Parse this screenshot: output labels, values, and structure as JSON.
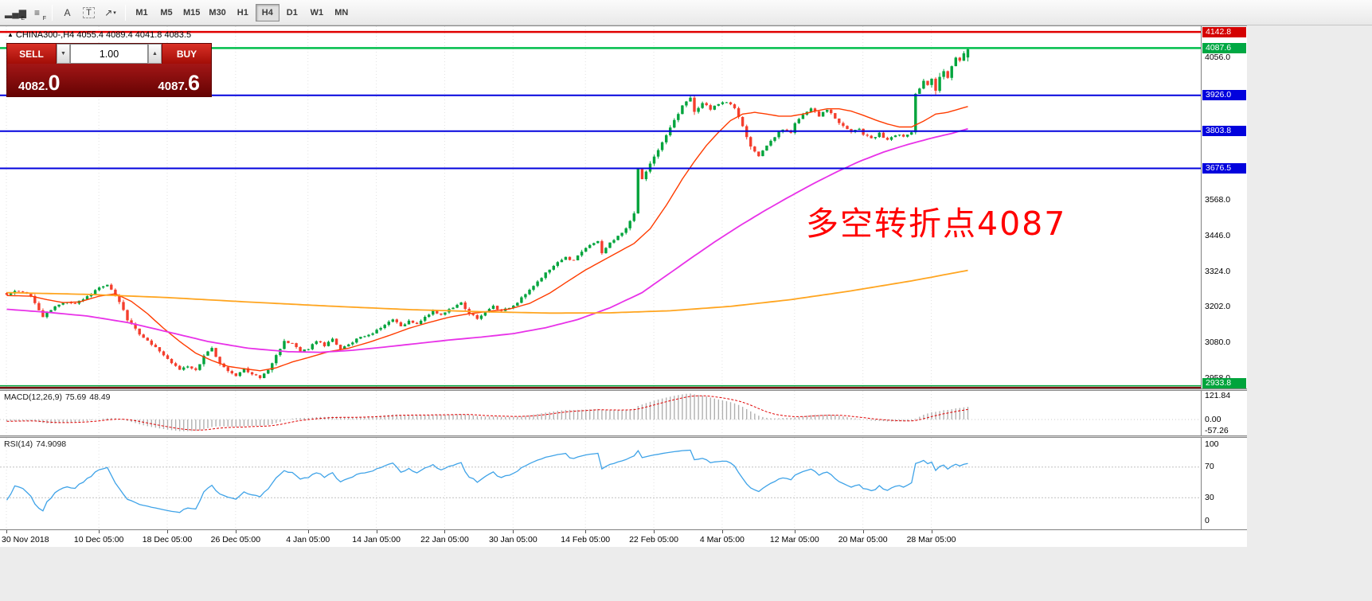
{
  "toolbar": {
    "tools": [
      {
        "name": "indicators-icon",
        "glyph": "▂▄▆",
        "sub": "E"
      },
      {
        "name": "objects-list-icon",
        "glyph": "≡",
        "sub": "F"
      },
      {
        "type": "sep"
      },
      {
        "name": "text-tool-icon",
        "glyph": "A"
      },
      {
        "name": "text-label-tool-icon",
        "glyph": "T",
        "boxed": true
      },
      {
        "name": "arrows-tool-icon",
        "glyph": "↗",
        "caret": true
      },
      {
        "type": "sep"
      }
    ],
    "timeframes": [
      {
        "label": "M1"
      },
      {
        "label": "M5"
      },
      {
        "label": "M15"
      },
      {
        "label": "M30"
      },
      {
        "label": "H1"
      },
      {
        "label": "H4",
        "active": true
      },
      {
        "label": "D1"
      },
      {
        "label": "W1"
      },
      {
        "label": "MN"
      }
    ]
  },
  "icons": {
    "collapse": "▲",
    "dropdown_caret": "▼",
    "spinner_up": "▲"
  },
  "chart": {
    "symbol_period": "CHINA300-,H4",
    "ohlc": "4055.4 4089.4 4041.8 4083.5",
    "annotation": {
      "text": "多空转折点4087",
      "color": "#ff0000"
    }
  },
  "trade_panel": {
    "sell_label": "SELL",
    "buy_label": "BUY",
    "volume": "1.00",
    "sell_price": {
      "small": "4082.",
      "big": "0"
    },
    "buy_price": {
      "small": "4087.",
      "big": "6"
    }
  },
  "chart_data": {
    "type": "candlestick",
    "symbol": "CHINA300-",
    "timeframe": "H4",
    "current_bar": {
      "open": 4055.4,
      "high": 4089.4,
      "low": 4041.8,
      "close": 4083.5
    },
    "y_axis_labels": [
      {
        "price": 4056,
        "text": "4056.0"
      },
      {
        "price": 3568,
        "text": "3568.0"
      },
      {
        "price": 3446,
        "text": "3446.0"
      },
      {
        "price": 3324,
        "text": "3324.0"
      },
      {
        "price": 3202,
        "text": "3202.0"
      },
      {
        "price": 3080,
        "text": "3080.0"
      },
      {
        "price": 2958,
        "text": "2958.0"
      }
    ],
    "hlines": [
      {
        "price": 4142.8,
        "color": "#E00000",
        "width": 2.5,
        "label": "4142.8",
        "label_bg": "#D40000"
      },
      {
        "price": 4087.6,
        "color": "#00BE4B",
        "width": 2.5,
        "label": "4087.6",
        "label_bg": "#00A843"
      },
      {
        "price": 3926.0,
        "color": "#0202DD",
        "width": 2,
        "label": "3926.0",
        "label_bg": "#0202DD"
      },
      {
        "price": 3803.8,
        "color": "#0202DD",
        "width": 2,
        "label": "3803.8",
        "label_bg": "#0202DD"
      },
      {
        "price": 3676.5,
        "color": "#0202DD",
        "width": 2,
        "label": "3676.5",
        "label_bg": "#0202DD"
      },
      {
        "price": 2933.8,
        "color": "#00A43C",
        "width": 1.5,
        "label": "2933.8",
        "label_bg": "#00A43C"
      },
      {
        "price": 2926.0,
        "color": "#7B1010",
        "width": 3,
        "label": null
      }
    ],
    "x_ticks": [
      {
        "bar": 0,
        "label": "30 Nov 2018"
      },
      {
        "bar": 23,
        "label": "10 Dec 05:00"
      },
      {
        "bar": 40,
        "label": "18 Dec 05:00"
      },
      {
        "bar": 57,
        "label": "26 Dec 05:00"
      },
      {
        "bar": 75,
        "label": "4 Jan 05:00"
      },
      {
        "bar": 92,
        "label": "14 Jan 05:00"
      },
      {
        "bar": 109,
        "label": "22 Jan 05:00"
      },
      {
        "bar": 126,
        "label": "30 Jan 05:00"
      },
      {
        "bar": 144,
        "label": "14 Feb 05:00"
      },
      {
        "bar": 161,
        "label": "22 Feb 05:00"
      },
      {
        "bar": 178,
        "label": "4 Mar 05:00"
      },
      {
        "bar": 196,
        "label": "12 Mar 05:00"
      },
      {
        "bar": 213,
        "label": "20 Mar 05:00"
      },
      {
        "bar": 230,
        "label": "28 Mar 05:00"
      }
    ],
    "price_anchors": [
      [
        -60,
        3320
      ],
      [
        -40,
        3300
      ],
      [
        -25,
        3280
      ],
      [
        -12,
        3262
      ],
      [
        -1,
        3248
      ],
      [
        0,
        3245
      ],
      [
        2,
        3260
      ],
      [
        4,
        3252
      ],
      [
        6,
        3240
      ],
      [
        8,
        3190
      ],
      [
        9,
        3172
      ],
      [
        11,
        3195
      ],
      [
        13,
        3210
      ],
      [
        15,
        3222
      ],
      [
        17,
        3215
      ],
      [
        19,
        3228
      ],
      [
        21,
        3248
      ],
      [
        23,
        3268
      ],
      [
        25,
        3280
      ],
      [
        28,
        3220
      ],
      [
        30,
        3160
      ],
      [
        33,
        3110
      ],
      [
        36,
        3075
      ],
      [
        40,
        3025
      ],
      [
        43,
        2988
      ],
      [
        45,
        3000
      ],
      [
        47,
        2985
      ],
      [
        49,
        3035
      ],
      [
        51,
        3060
      ],
      [
        53,
        3010
      ],
      [
        55,
        2985
      ],
      [
        57,
        2968
      ],
      [
        59,
        2990
      ],
      [
        61,
        2972
      ],
      [
        63,
        2960
      ],
      [
        65,
        2985
      ],
      [
        67,
        3040
      ],
      [
        69,
        3085
      ],
      [
        71,
        3080
      ],
      [
        73,
        3050
      ],
      [
        75,
        3062
      ],
      [
        77,
        3085
      ],
      [
        79,
        3072
      ],
      [
        81,
        3092
      ],
      [
        83,
        3060
      ],
      [
        85,
        3072
      ],
      [
        87,
        3095
      ],
      [
        89,
        3105
      ],
      [
        91,
        3115
      ],
      [
        94,
        3140
      ],
      [
        96,
        3160
      ],
      [
        98,
        3135
      ],
      [
        100,
        3155
      ],
      [
        102,
        3148
      ],
      [
        104,
        3170
      ],
      [
        106,
        3188
      ],
      [
        108,
        3178
      ],
      [
        111,
        3200
      ],
      [
        113,
        3215
      ],
      [
        115,
        3180
      ],
      [
        117,
        3165
      ],
      [
        119,
        3185
      ],
      [
        121,
        3205
      ],
      [
        123,
        3190
      ],
      [
        125,
        3200
      ],
      [
        127,
        3218
      ],
      [
        129,
        3248
      ],
      [
        131,
        3278
      ],
      [
        133,
        3305
      ],
      [
        135,
        3332
      ],
      [
        137,
        3358
      ],
      [
        139,
        3372
      ],
      [
        141,
        3362
      ],
      [
        143,
        3392
      ],
      [
        145,
        3412
      ],
      [
        147,
        3425
      ],
      [
        148,
        3390
      ],
      [
        150,
        3420
      ],
      [
        152,
        3445
      ],
      [
        154,
        3470
      ],
      [
        156,
        3520
      ],
      [
        157,
        3672
      ],
      [
        158,
        3640
      ],
      [
        160,
        3690
      ],
      [
        162,
        3740
      ],
      [
        164,
        3790
      ],
      [
        166,
        3840
      ],
      [
        168,
        3890
      ],
      [
        170,
        3920
      ],
      [
        171,
        3870
      ],
      [
        173,
        3900
      ],
      [
        175,
        3880
      ],
      [
        177,
        3898
      ],
      [
        179,
        3904
      ],
      [
        181,
        3885
      ],
      [
        183,
        3820
      ],
      [
        185,
        3750
      ],
      [
        187,
        3718
      ],
      [
        189,
        3755
      ],
      [
        191,
        3785
      ],
      [
        193,
        3812
      ],
      [
        195,
        3800
      ],
      [
        196,
        3830
      ],
      [
        198,
        3858
      ],
      [
        200,
        3880
      ],
      [
        202,
        3856
      ],
      [
        204,
        3876
      ],
      [
        206,
        3848
      ],
      [
        208,
        3820
      ],
      [
        210,
        3800
      ],
      [
        212,
        3812
      ],
      [
        213,
        3792
      ],
      [
        215,
        3778
      ],
      [
        217,
        3795
      ],
      [
        219,
        3772
      ],
      [
        221,
        3792
      ],
      [
        223,
        3786
      ],
      [
        225,
        3802
      ],
      [
        226,
        3928
      ],
      [
        227,
        3952
      ],
      [
        228,
        3978
      ],
      [
        229,
        3958
      ],
      [
        230,
        3986
      ],
      [
        231,
        3942
      ],
      [
        232,
        3988
      ],
      [
        233,
        4012
      ],
      [
        234,
        3986
      ],
      [
        235,
        4026
      ],
      [
        236,
        4056
      ],
      [
        237,
        4042
      ],
      [
        238,
        4070
      ],
      [
        239,
        4083.5
      ]
    ],
    "moving_averages": [
      {
        "name": "ma-fast",
        "color": "#FF3C00",
        "width": 1.4,
        "anchors": [
          [
            0,
            3242
          ],
          [
            6,
            3240
          ],
          [
            10,
            3228
          ],
          [
            14,
            3218
          ],
          [
            18,
            3220
          ],
          [
            23,
            3240
          ],
          [
            27,
            3248
          ],
          [
            31,
            3222
          ],
          [
            35,
            3180
          ],
          [
            39,
            3130
          ],
          [
            43,
            3085
          ],
          [
            47,
            3045
          ],
          [
            51,
            3020
          ],
          [
            55,
            3000
          ],
          [
            59,
            2992
          ],
          [
            63,
            2985
          ],
          [
            67,
            2995
          ],
          [
            71,
            3015
          ],
          [
            75,
            3030
          ],
          [
            80,
            3050
          ],
          [
            85,
            3062
          ],
          [
            90,
            3082
          ],
          [
            95,
            3105
          ],
          [
            100,
            3130
          ],
          [
            105,
            3150
          ],
          [
            110,
            3168
          ],
          [
            115,
            3180
          ],
          [
            120,
            3188
          ],
          [
            125,
            3196
          ],
          [
            130,
            3215
          ],
          [
            135,
            3250
          ],
          [
            140,
            3295
          ],
          [
            144,
            3330
          ],
          [
            148,
            3360
          ],
          [
            152,
            3390
          ],
          [
            156,
            3420
          ],
          [
            160,
            3470
          ],
          [
            164,
            3550
          ],
          [
            168,
            3640
          ],
          [
            171,
            3700
          ],
          [
            174,
            3755
          ],
          [
            177,
            3800
          ],
          [
            180,
            3840
          ],
          [
            183,
            3862
          ],
          [
            186,
            3868
          ],
          [
            189,
            3862
          ],
          [
            192,
            3855
          ],
          [
            195,
            3855
          ],
          [
            198,
            3862
          ],
          [
            201,
            3872
          ],
          [
            204,
            3880
          ],
          [
            207,
            3880
          ],
          [
            210,
            3872
          ],
          [
            213,
            3858
          ],
          [
            216,
            3842
          ],
          [
            219,
            3828
          ],
          [
            222,
            3818
          ],
          [
            225,
            3818
          ],
          [
            228,
            3838
          ],
          [
            231,
            3862
          ],
          [
            234,
            3868
          ],
          [
            237,
            3880
          ],
          [
            239,
            3888
          ]
        ]
      },
      {
        "name": "ma-mid",
        "color": "#E832E8",
        "width": 1.8,
        "anchors": [
          [
            0,
            3195
          ],
          [
            10,
            3185
          ],
          [
            20,
            3172
          ],
          [
            30,
            3150
          ],
          [
            40,
            3118
          ],
          [
            50,
            3085
          ],
          [
            60,
            3062
          ],
          [
            70,
            3050
          ],
          [
            78,
            3048
          ],
          [
            86,
            3055
          ],
          [
            94,
            3066
          ],
          [
            102,
            3078
          ],
          [
            110,
            3090
          ],
          [
            118,
            3100
          ],
          [
            126,
            3112
          ],
          [
            134,
            3132
          ],
          [
            142,
            3160
          ],
          [
            150,
            3200
          ],
          [
            158,
            3252
          ],
          [
            164,
            3310
          ],
          [
            170,
            3368
          ],
          [
            176,
            3425
          ],
          [
            182,
            3478
          ],
          [
            188,
            3528
          ],
          [
            194,
            3575
          ],
          [
            200,
            3620
          ],
          [
            206,
            3662
          ],
          [
            212,
            3700
          ],
          [
            218,
            3732
          ],
          [
            224,
            3758
          ],
          [
            230,
            3780
          ],
          [
            235,
            3796
          ],
          [
            239,
            3812
          ]
        ]
      },
      {
        "name": "ma-slow",
        "color": "#FFA520",
        "width": 1.8,
        "anchors": [
          [
            0,
            3252
          ],
          [
            20,
            3246
          ],
          [
            40,
            3235
          ],
          [
            60,
            3220
          ],
          [
            80,
            3206
          ],
          [
            100,
            3194
          ],
          [
            120,
            3186
          ],
          [
            135,
            3182
          ],
          [
            150,
            3183
          ],
          [
            165,
            3190
          ],
          [
            180,
            3205
          ],
          [
            195,
            3228
          ],
          [
            210,
            3258
          ],
          [
            225,
            3292
          ],
          [
            239,
            3328
          ]
        ]
      }
    ],
    "candles": {
      "seed": 20190404,
      "bull": "#00A43C",
      "bear": "#F43E2D",
      "last": {
        "o": 4055.4,
        "h": 4089.4,
        "l": 4041.8,
        "c": 4083.5
      }
    },
    "macd": {
      "label": "MACD(12,26,9)",
      "value_main": "75.69",
      "value_signal": "48.49",
      "axis_values": [
        121.84,
        0,
        -57.26
      ],
      "axis_labels": [
        "121.84",
        "0.00",
        "-57.26"
      ],
      "histogram_color": "#B0B0B0",
      "signal_color": "#E00000"
    },
    "rsi": {
      "label": "RSI(14)",
      "value": "74.9098",
      "axis_values": [
        100,
        70,
        30,
        0
      ],
      "axis_labels": [
        "100",
        "70",
        "30",
        "0"
      ],
      "levels": [
        70,
        30
      ],
      "color": "#3FA3E8"
    }
  }
}
